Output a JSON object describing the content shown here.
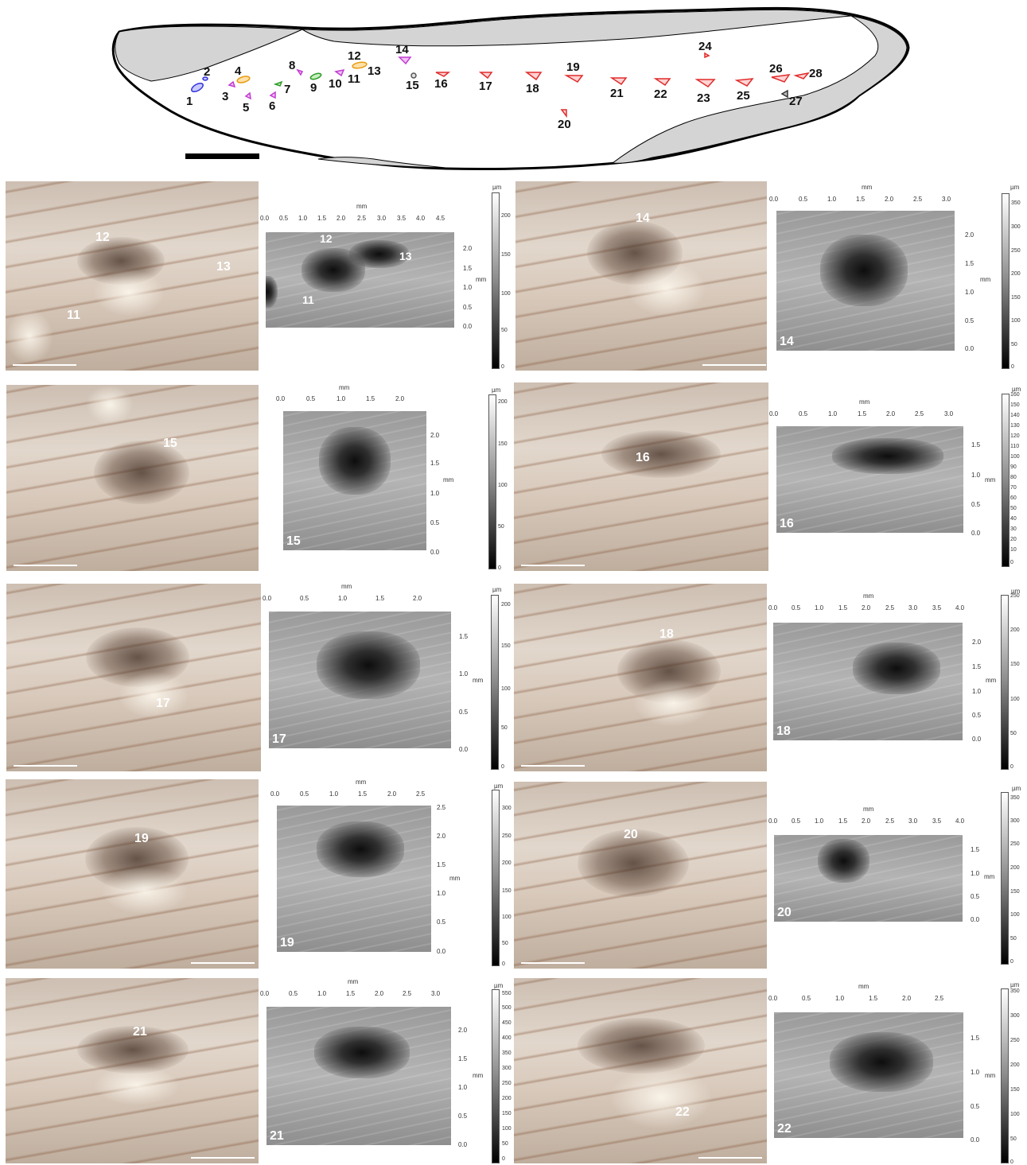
{
  "figure": {
    "markers": [
      "1",
      "2",
      "3",
      "4",
      "5",
      "6",
      "7",
      "8",
      "9",
      "10",
      "11",
      "12",
      "13",
      "14",
      "15",
      "16",
      "17",
      "18",
      "19",
      "20",
      "21",
      "22",
      "23",
      "24",
      "25",
      "26",
      "27",
      "28"
    ]
  },
  "axis_units": {
    "mm": "mm",
    "um": "µm"
  },
  "panels": [
    {
      "id": "11-13",
      "photo_labels": [
        "12",
        "13",
        "11"
      ],
      "topo_labels": [
        "12",
        "13",
        "11"
      ],
      "topo_label": "",
      "x_ticks": [
        "0.0",
        "0.5",
        "1.0",
        "1.5",
        "2.0",
        "2.5",
        "3.0",
        "3.5",
        "4.0",
        "4.5"
      ],
      "y_ticks": [
        "2.0",
        "1.5",
        "1.0",
        "0.5",
        "0.0"
      ],
      "cb_ticks": [
        "200",
        "150",
        "100",
        "50",
        "0"
      ]
    },
    {
      "id": "14",
      "photo_labels": [
        "14"
      ],
      "topo_labels": [],
      "topo_label": "14",
      "x_ticks": [
        "0.0",
        "0.5",
        "1.0",
        "1.5",
        "2.0",
        "2.5",
        "3.0"
      ],
      "y_ticks": [
        "2.0",
        "1.5",
        "1.0",
        "0.5",
        "0.0"
      ],
      "cb_ticks": [
        "350",
        "300",
        "250",
        "200",
        "150",
        "100",
        "50",
        "0"
      ]
    },
    {
      "id": "15",
      "photo_labels": [
        "15"
      ],
      "topo_labels": [],
      "topo_label": "15",
      "x_ticks": [
        "0.0",
        "0.5",
        "1.0",
        "1.5",
        "2.0"
      ],
      "y_ticks": [
        "2.0",
        "1.5",
        "1.0",
        "0.5",
        "0.0"
      ],
      "cb_ticks": [
        "200",
        "150",
        "100",
        "50",
        "0"
      ]
    },
    {
      "id": "16",
      "photo_labels": [
        "16"
      ],
      "topo_labels": [],
      "topo_label": "16",
      "x_ticks": [
        "0.0",
        "0.5",
        "1.0",
        "1.5",
        "2.0",
        "2.5",
        "3.0"
      ],
      "y_ticks": [
        "1.5",
        "1.0",
        "0.5",
        "0.0"
      ],
      "cb_ticks": [
        "160",
        "150",
        "140",
        "130",
        "120",
        "110",
        "100",
        "90",
        "80",
        "70",
        "60",
        "50",
        "40",
        "30",
        "20",
        "10",
        "0"
      ]
    },
    {
      "id": "17",
      "photo_labels": [
        "17"
      ],
      "topo_labels": [],
      "topo_label": "17",
      "x_ticks": [
        "0.0",
        "0.5",
        "1.0",
        "1.5",
        "2.0"
      ],
      "y_ticks": [
        "1.5",
        "1.0",
        "0.5",
        "0.0"
      ],
      "cb_ticks": [
        "200",
        "150",
        "100",
        "50",
        "0"
      ]
    },
    {
      "id": "18",
      "photo_labels": [
        "18"
      ],
      "topo_labels": [],
      "topo_label": "18",
      "x_ticks": [
        "0.0",
        "0.5",
        "1.0",
        "1.5",
        "2.0",
        "2.5",
        "3.0",
        "3.5",
        "4.0"
      ],
      "y_ticks": [
        "2.0",
        "1.5",
        "1.0",
        "0.5",
        "0.0"
      ],
      "cb_ticks": [
        "250",
        "200",
        "150",
        "100",
        "50",
        "0"
      ]
    },
    {
      "id": "19",
      "photo_labels": [
        "19"
      ],
      "topo_labels": [],
      "topo_label": "19",
      "x_ticks": [
        "0.0",
        "0.5",
        "1.0",
        "1.5",
        "2.0",
        "2.5"
      ],
      "y_ticks": [
        "2.5",
        "2.0",
        "1.5",
        "1.0",
        "0.5",
        "0.0"
      ],
      "cb_ticks": [
        "300",
        "250",
        "200",
        "150",
        "100",
        "50",
        "0"
      ]
    },
    {
      "id": "20",
      "photo_labels": [
        "20"
      ],
      "topo_labels": [],
      "topo_label": "20",
      "x_ticks": [
        "0.0",
        "0.5",
        "1.0",
        "1.5",
        "2.0",
        "2.5",
        "3.0",
        "3.5",
        "4.0"
      ],
      "y_ticks": [
        "1.5",
        "1.0",
        "0.5",
        "0.0"
      ],
      "cb_ticks": [
        "350",
        "300",
        "250",
        "200",
        "150",
        "100",
        "50",
        "0"
      ]
    },
    {
      "id": "21",
      "photo_labels": [
        "21"
      ],
      "topo_labels": [],
      "topo_label": "21",
      "x_ticks": [
        "0.0",
        "0.5",
        "1.0",
        "1.5",
        "2.0",
        "2.5",
        "3.0"
      ],
      "y_ticks": [
        "2.0",
        "1.5",
        "1.0",
        "0.5",
        "0.0"
      ],
      "cb_ticks": [
        "550",
        "500",
        "450",
        "400",
        "350",
        "300",
        "250",
        "200",
        "150",
        "100",
        "50",
        "0"
      ]
    },
    {
      "id": "22",
      "photo_labels": [
        "22"
      ],
      "topo_labels": [],
      "topo_label": "22",
      "x_ticks": [
        "0.0",
        "0.5",
        "1.0",
        "1.5",
        "2.0",
        "2.5"
      ],
      "y_ticks": [
        "1.5",
        "1.0",
        "0.5",
        "0.0"
      ],
      "cb_ticks": [
        "350",
        "300",
        "250",
        "200",
        "150",
        "100",
        "50",
        "0"
      ]
    }
  ]
}
